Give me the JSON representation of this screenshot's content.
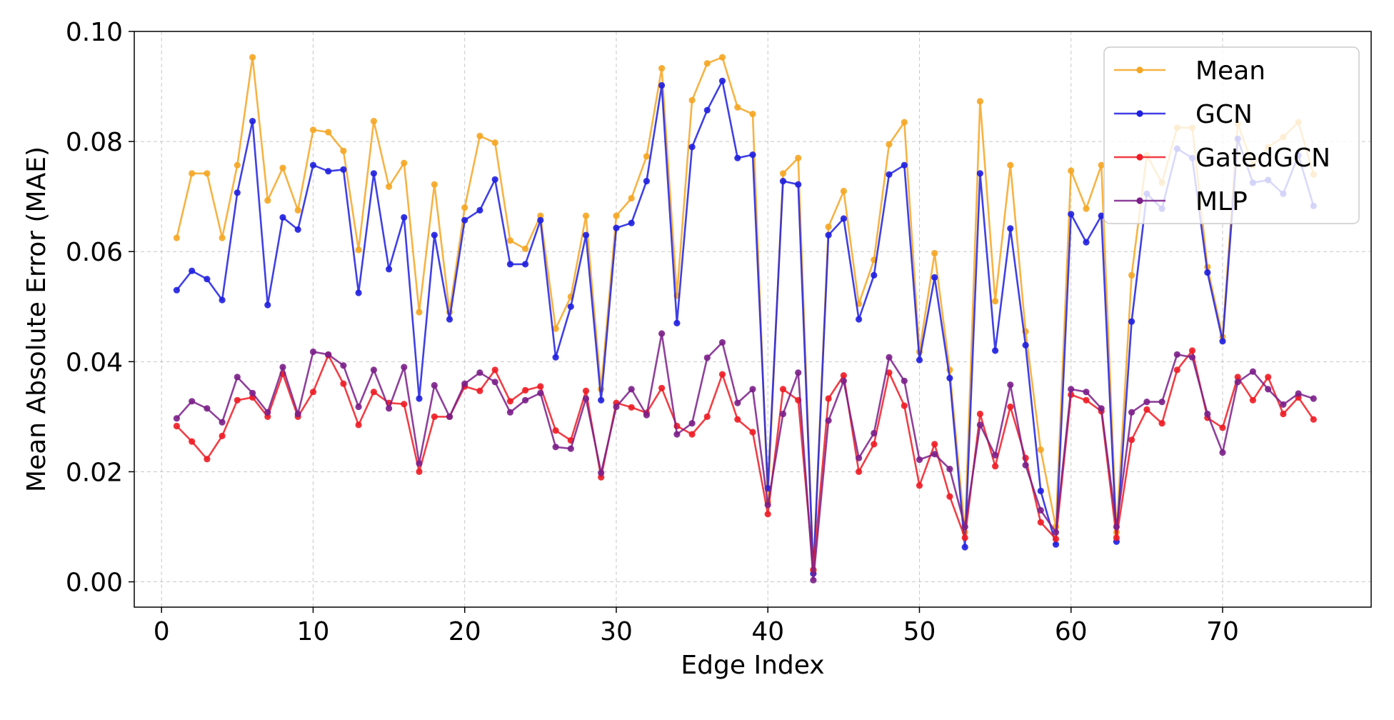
{
  "chart_data": {
    "type": "line",
    "title": "",
    "xlabel": "Edge Index",
    "ylabel": "Mean Absolute Error (MAE)",
    "xlim": [
      -1.8,
      79.8
    ],
    "ylim": [
      -0.0046,
      0.1
    ],
    "x_ticks": [
      0,
      10,
      20,
      30,
      40,
      50,
      60,
      70
    ],
    "y_ticks": [
      0.0,
      0.02,
      0.04,
      0.06,
      0.08,
      0.1
    ],
    "x_tick_labels": [
      "0",
      "10",
      "20",
      "30",
      "40",
      "50",
      "60",
      "70"
    ],
    "y_tick_labels": [
      "0.00",
      "0.02",
      "0.04",
      "0.06",
      "0.08",
      "0.10"
    ],
    "grid": true,
    "legend_position": "top-right",
    "x": [
      1,
      2,
      3,
      4,
      5,
      6,
      7,
      8,
      9,
      10,
      11,
      12,
      13,
      14,
      15,
      16,
      17,
      18,
      19,
      20,
      21,
      22,
      23,
      24,
      25,
      26,
      27,
      28,
      29,
      30,
      31,
      32,
      33,
      34,
      35,
      36,
      37,
      38,
      39,
      40,
      41,
      42,
      43,
      44,
      45,
      46,
      47,
      48,
      49,
      50,
      51,
      52,
      53,
      54,
      55,
      56,
      57,
      58,
      59,
      60,
      61,
      62,
      63,
      64,
      65,
      66,
      67,
      68,
      69,
      70,
      71,
      72,
      73,
      74,
      75,
      76
    ],
    "series": [
      {
        "name": "Mean",
        "color": "#f5a623",
        "values": [
          0.0625,
          0.0742,
          0.0742,
          0.0625,
          0.0757,
          0.0953,
          0.0693,
          0.0752,
          0.0675,
          0.0821,
          0.0817,
          0.0783,
          0.0603,
          0.0837,
          0.0718,
          0.0761,
          0.049,
          0.0722,
          0.049,
          0.068,
          0.081,
          0.0798,
          0.062,
          0.0605,
          0.0665,
          0.046,
          0.0518,
          0.0665,
          0.035,
          0.0665,
          0.0697,
          0.0773,
          0.0933,
          0.052,
          0.0875,
          0.0942,
          0.0953,
          0.0862,
          0.085,
          0.0145,
          0.0742,
          0.077,
          0.002,
          0.0645,
          0.071,
          0.0505,
          0.0585,
          0.0795,
          0.0835,
          0.0418,
          0.0597,
          0.0385,
          0.009,
          0.0873,
          0.051,
          0.0757,
          0.0455,
          0.024,
          0.01,
          0.0747,
          0.0678,
          0.0757,
          0.009,
          0.0557,
          0.0775,
          0.0725,
          0.0825,
          0.0825,
          0.0572,
          0.0445,
          0.0832,
          0.0757,
          0.079,
          0.0808,
          0.0835,
          0.074
        ]
      },
      {
        "name": "GCN",
        "color": "#1f1fe0",
        "values": [
          0.053,
          0.0565,
          0.055,
          0.0512,
          0.0707,
          0.0837,
          0.0503,
          0.0662,
          0.064,
          0.0757,
          0.0746,
          0.0749,
          0.0525,
          0.0742,
          0.0568,
          0.0662,
          0.0333,
          0.063,
          0.0477,
          0.0657,
          0.0675,
          0.0731,
          0.0577,
          0.0577,
          0.0657,
          0.0408,
          0.05,
          0.063,
          0.033,
          0.0643,
          0.0652,
          0.0728,
          0.0902,
          0.047,
          0.079,
          0.0857,
          0.091,
          0.077,
          0.0776,
          0.017,
          0.0728,
          0.0722,
          0.0015,
          0.063,
          0.066,
          0.0477,
          0.0557,
          0.074,
          0.0757,
          0.0403,
          0.0553,
          0.037,
          0.0063,
          0.0742,
          0.042,
          0.0642,
          0.043,
          0.0165,
          0.0068,
          0.0668,
          0.0617,
          0.0665,
          0.0073,
          0.0473,
          0.0705,
          0.0678,
          0.0787,
          0.077,
          0.0562,
          0.0437,
          0.0805,
          0.0725,
          0.073,
          0.0705,
          0.0775,
          0.0683
        ]
      },
      {
        "name": "GatedGCN",
        "color": "#ee1c25",
        "values": [
          0.0283,
          0.0255,
          0.0223,
          0.0265,
          0.033,
          0.0335,
          0.03,
          0.0378,
          0.03,
          0.0345,
          0.0412,
          0.036,
          0.0285,
          0.0345,
          0.0325,
          0.0323,
          0.02,
          0.03,
          0.03,
          0.0355,
          0.0347,
          0.0385,
          0.0328,
          0.0348,
          0.0355,
          0.0275,
          0.0257,
          0.0347,
          0.019,
          0.0325,
          0.0317,
          0.0307,
          0.0352,
          0.0283,
          0.0268,
          0.03,
          0.0377,
          0.0295,
          0.0272,
          0.0123,
          0.035,
          0.033,
          0.0022,
          0.0333,
          0.0375,
          0.02,
          0.025,
          0.038,
          0.032,
          0.0175,
          0.025,
          0.0155,
          0.008,
          0.0305,
          0.021,
          0.0318,
          0.0225,
          0.0108,
          0.0078,
          0.034,
          0.033,
          0.031,
          0.008,
          0.0258,
          0.0313,
          0.0288,
          0.0385,
          0.042,
          0.0298,
          0.028,
          0.0372,
          0.033,
          0.0372,
          0.0305,
          0.0335,
          0.0295
        ]
      },
      {
        "name": "MLP",
        "color": "#7b1f8a",
        "values": [
          0.0297,
          0.0328,
          0.0315,
          0.029,
          0.0372,
          0.0343,
          0.0308,
          0.039,
          0.0305,
          0.0418,
          0.0413,
          0.0393,
          0.0318,
          0.0385,
          0.0315,
          0.039,
          0.0215,
          0.0357,
          0.03,
          0.036,
          0.038,
          0.0363,
          0.0308,
          0.033,
          0.0343,
          0.0245,
          0.0242,
          0.0333,
          0.0198,
          0.0318,
          0.035,
          0.0303,
          0.0451,
          0.0268,
          0.0288,
          0.0407,
          0.0435,
          0.0325,
          0.035,
          0.014,
          0.0305,
          0.038,
          0.0003,
          0.0293,
          0.0365,
          0.0225,
          0.027,
          0.0408,
          0.0365,
          0.0222,
          0.0232,
          0.0205,
          0.01,
          0.0285,
          0.023,
          0.0358,
          0.0212,
          0.013,
          0.009,
          0.035,
          0.0345,
          0.0315,
          0.01,
          0.0308,
          0.0327,
          0.0327,
          0.0413,
          0.0408,
          0.0305,
          0.0235,
          0.0363,
          0.0382,
          0.035,
          0.0322,
          0.0342,
          0.0333
        ]
      }
    ]
  }
}
